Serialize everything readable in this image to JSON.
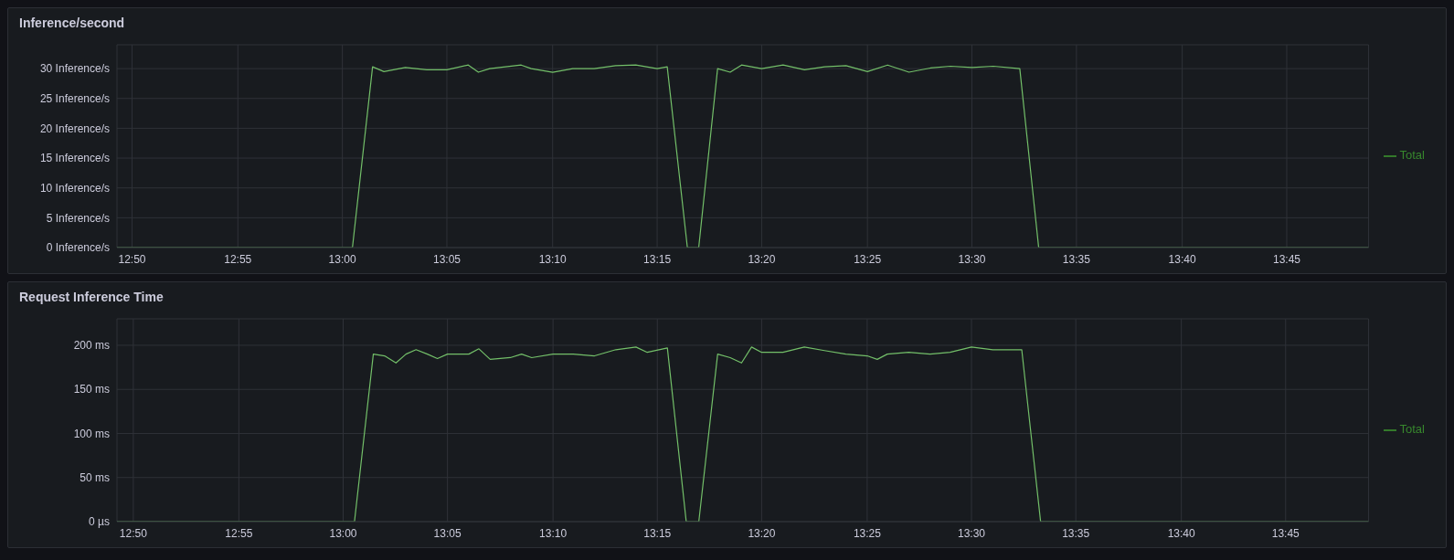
{
  "chart_data": [
    {
      "type": "line",
      "title": "Inference/second",
      "xlim": [
        12.821,
        13.815
      ],
      "ylim": [
        0,
        34
      ],
      "grid": true,
      "legend": "right",
      "marker": "none",
      "xticks": [
        {
          "value": 12.833,
          "label": "12:50"
        },
        {
          "value": 12.917,
          "label": "12:55"
        },
        {
          "value": 13,
          "label": "13:00"
        },
        {
          "value": 13.083,
          "label": "13:05"
        },
        {
          "value": 13.167,
          "label": "13:10"
        },
        {
          "value": 13.25,
          "label": "13:15"
        },
        {
          "value": 13.333,
          "label": "13:20"
        },
        {
          "value": 13.417,
          "label": "13:25"
        },
        {
          "value": 13.5,
          "label": "13:30"
        },
        {
          "value": 13.583,
          "label": "13:35"
        },
        {
          "value": 13.667,
          "label": "13:40"
        },
        {
          "value": 13.75,
          "label": "13:45"
        }
      ],
      "yticks": [
        {
          "value": 0,
          "label": "0 Inference/s"
        },
        {
          "value": 5,
          "label": "5 Inference/s"
        },
        {
          "value": 10,
          "label": "10 Inference/s"
        },
        {
          "value": 15,
          "label": "15 Inference/s"
        },
        {
          "value": 20,
          "label": "20 Inference/s"
        },
        {
          "value": 25,
          "label": "25 Inference/s"
        },
        {
          "value": 30,
          "label": "30 Inference/s"
        }
      ],
      "series": [
        {
          "color": "#73bf69",
          "x": [
            12.821,
            13.008,
            13.024,
            13.033,
            13.05,
            13.067,
            13.083,
            13.1,
            13.108,
            13.117,
            13.142,
            13.15,
            13.167,
            13.183,
            13.2,
            13.217,
            13.233,
            13.25,
            13.258,
            13.274,
            13.283,
            13.298,
            13.308,
            13.317,
            13.333,
            13.35,
            13.367,
            13.383,
            13.4,
            13.417,
            13.433,
            13.45,
            13.467,
            13.483,
            13.5,
            13.517,
            13.538,
            13.553,
            13.815
          ],
          "values": [
            0,
            0,
            30.3,
            29.5,
            30.2,
            29.8,
            29.8,
            30.6,
            29.4,
            30,
            30.6,
            30,
            29.4,
            30,
            30,
            30.5,
            30.6,
            30,
            30.3,
            0,
            0,
            30,
            29.4,
            30.6,
            30,
            30.6,
            29.8,
            30.3,
            30.5,
            29.5,
            30.6,
            29.4,
            30.1,
            30.4,
            30.2,
            30.4,
            30,
            0,
            0
          ]
        },
        {
          "name": "Total",
          "color": "#37872d"
        }
      ]
    },
    {
      "type": "line",
      "title": "Request Inference Time",
      "xlim": [
        12.82,
        13.816
      ],
      "ylim": [
        0,
        230
      ],
      "grid": true,
      "legend": "right",
      "marker": "none",
      "xticks": [
        {
          "value": 12.833,
          "label": "12:50"
        },
        {
          "value": 12.917,
          "label": "12:55"
        },
        {
          "value": 13,
          "label": "13:00"
        },
        {
          "value": 13.083,
          "label": "13:05"
        },
        {
          "value": 13.167,
          "label": "13:10"
        },
        {
          "value": 13.25,
          "label": "13:15"
        },
        {
          "value": 13.333,
          "label": "13:20"
        },
        {
          "value": 13.417,
          "label": "13:25"
        },
        {
          "value": 13.5,
          "label": "13:30"
        },
        {
          "value": 13.583,
          "label": "13:35"
        },
        {
          "value": 13.667,
          "label": "13:40"
        },
        {
          "value": 13.75,
          "label": "13:45"
        }
      ],
      "yticks": [
        {
          "value": 0,
          "label": "0 µs"
        },
        {
          "value": 50,
          "label": "50 ms"
        },
        {
          "value": 100,
          "label": "100 ms"
        },
        {
          "value": 150,
          "label": "150 ms"
        },
        {
          "value": 200,
          "label": "200 ms"
        }
      ],
      "series": [
        {
          "color": "#73bf69",
          "x": [
            12.82,
            13.009,
            13.024,
            13.033,
            13.042,
            13.05,
            13.058,
            13.067,
            13.075,
            13.083,
            13.1,
            13.108,
            13.117,
            13.133,
            13.142,
            13.15,
            13.167,
            13.183,
            13.2,
            13.217,
            13.233,
            13.242,
            13.258,
            13.273,
            13.283,
            13.298,
            13.308,
            13.317,
            13.325,
            13.333,
            13.35,
            13.367,
            13.383,
            13.4,
            13.417,
            13.425,
            13.433,
            13.45,
            13.467,
            13.483,
            13.5,
            13.517,
            13.54,
            13.555,
            13.816
          ],
          "values": [
            0,
            0,
            190,
            188,
            180,
            190,
            195,
            190,
            185,
            190,
            190,
            196,
            184,
            186,
            190,
            186,
            190,
            190,
            188,
            195,
            198,
            192,
            197,
            0,
            0,
            190,
            186,
            180,
            198,
            192,
            192,
            198,
            194,
            190,
            188,
            184,
            190,
            192,
            190,
            192,
            198,
            195,
            195,
            0,
            0
          ]
        },
        {
          "name": "Total",
          "color": "#37872d"
        }
      ]
    }
  ]
}
